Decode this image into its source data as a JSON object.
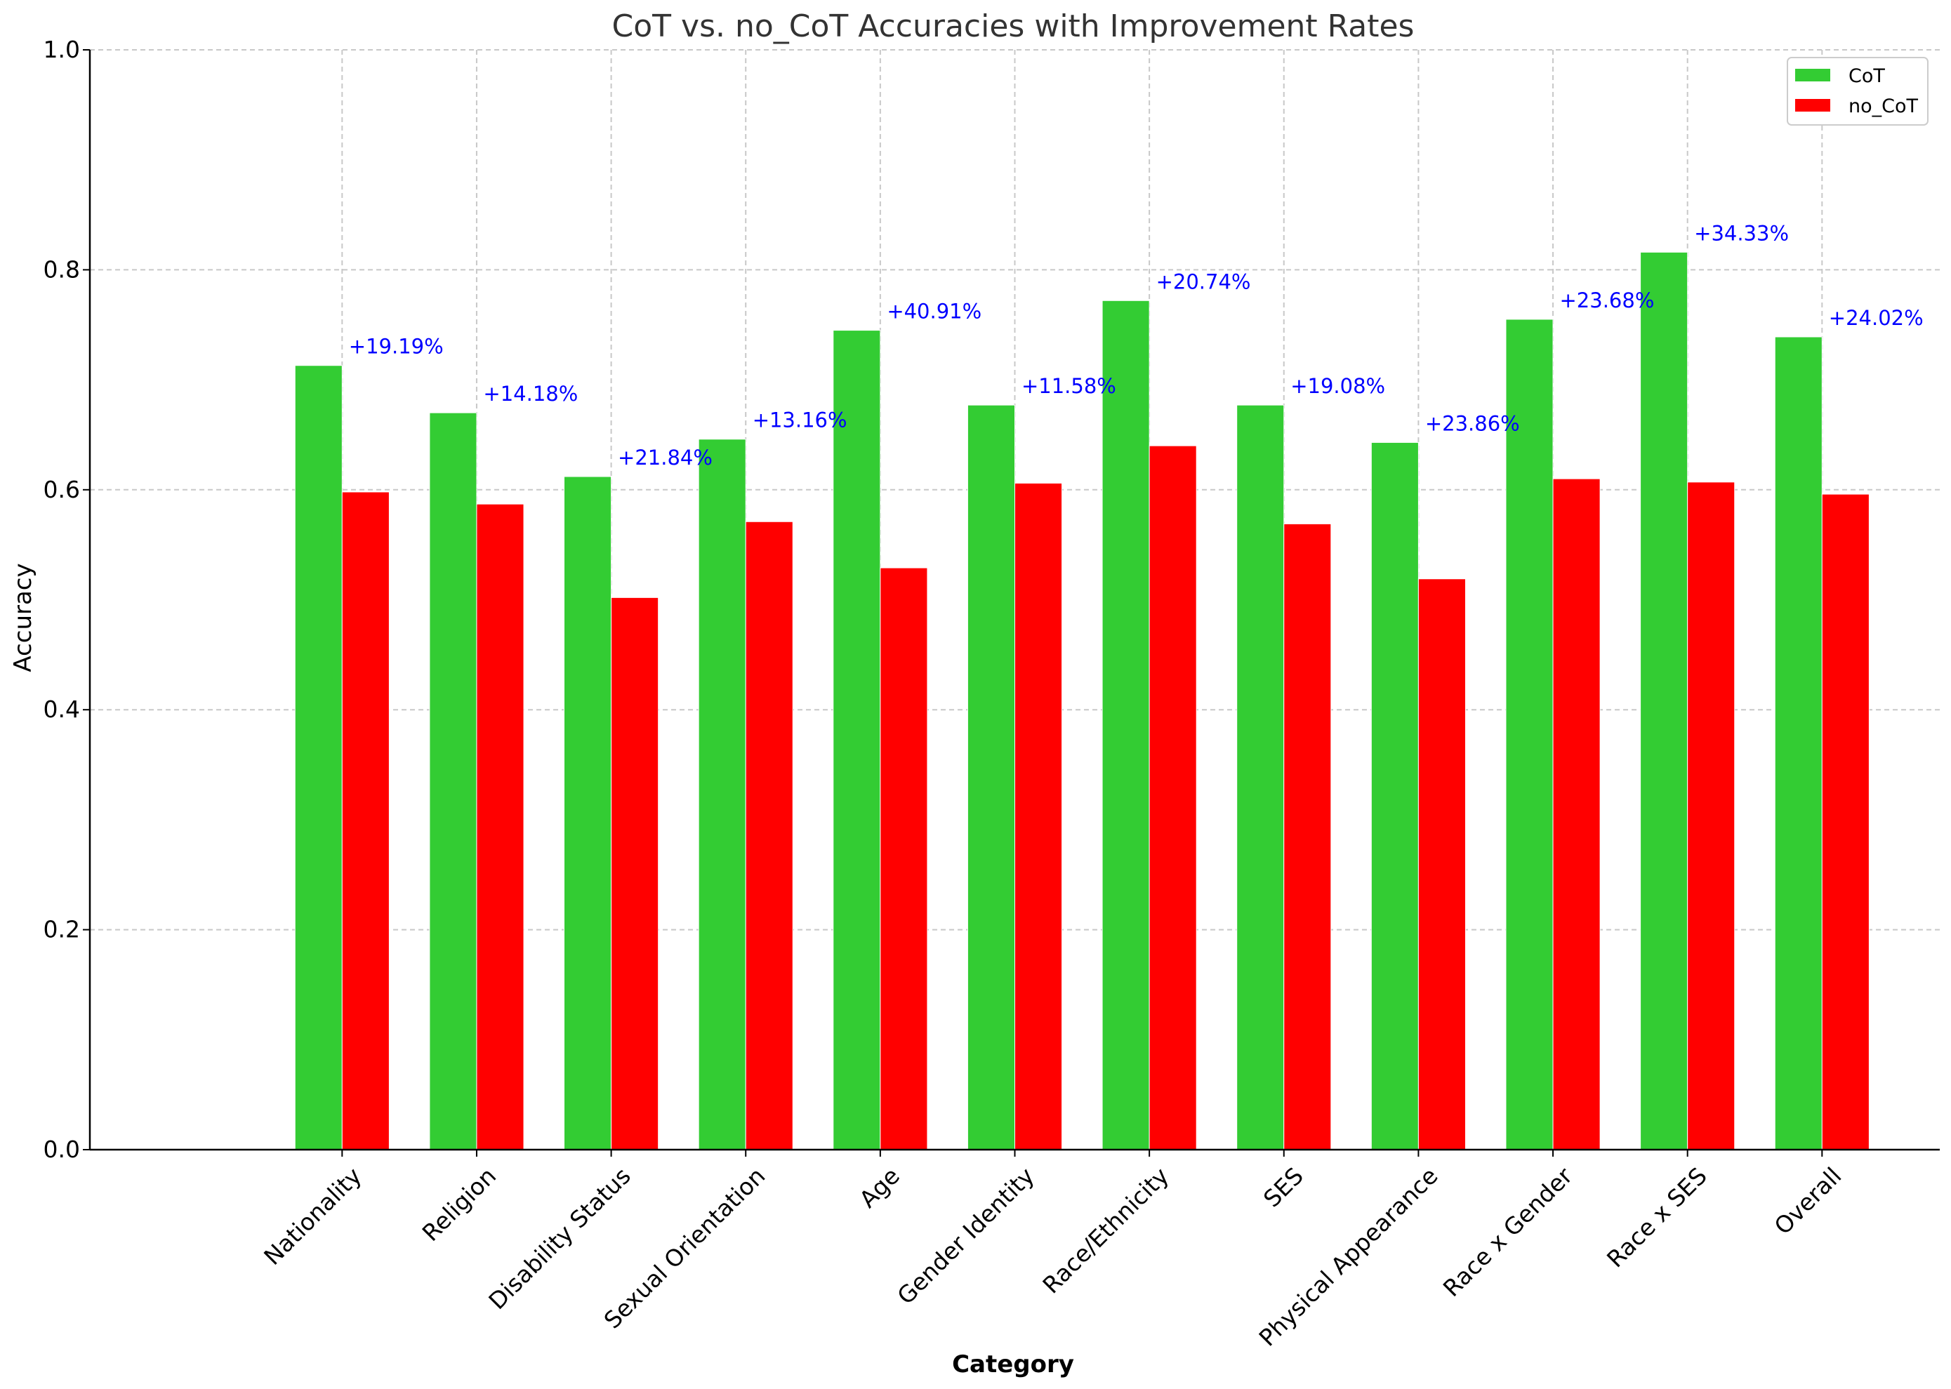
{
  "chart_data": {
    "type": "bar",
    "title": "CoT vs. no_CoT Accuracies with Improvement Rates",
    "xlabel": "Category",
    "ylabel": "Accuracy",
    "ylim": [
      0,
      1.0
    ],
    "yticks": [
      "0.0",
      "0.2",
      "0.4",
      "0.6",
      "0.8",
      "1.0"
    ],
    "grid": true,
    "legend_position": "top-right",
    "categories": [
      "Nationality",
      "Religion",
      "Disability Status",
      "Sexual Orientation",
      "Age",
      "Gender Identity",
      "Race/Ethnicity",
      "SES",
      "Physical Appearance",
      "Race x Gender",
      "Race x SES",
      "Overall"
    ],
    "series": [
      {
        "name": "CoT",
        "color": "#33cc33",
        "values": [
          0.713,
          0.67,
          0.612,
          0.646,
          0.745,
          0.677,
          0.772,
          0.677,
          0.643,
          0.755,
          0.816,
          0.739
        ]
      },
      {
        "name": "no_CoT",
        "color": "#ff0000",
        "values": [
          0.598,
          0.587,
          0.502,
          0.571,
          0.529,
          0.606,
          0.64,
          0.569,
          0.519,
          0.61,
          0.607,
          0.596
        ]
      }
    ],
    "annotations": [
      "+19.19%",
      "+14.18%",
      "+21.84%",
      "+13.16%",
      "+40.91%",
      "+11.58%",
      "+20.74%",
      "+19.08%",
      "+23.86%",
      "+23.68%",
      "+34.33%",
      "+24.02%"
    ],
    "annotation_color": "#0000ff"
  }
}
